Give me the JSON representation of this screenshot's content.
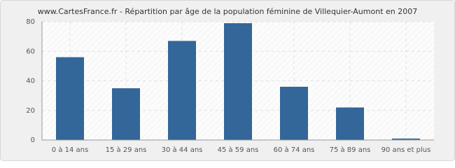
{
  "chart_data": {
    "type": "bar",
    "title": "www.CartesFrance.fr - Répartition par âge de la population féminine de Villequier-Aumont en 2007",
    "categories": [
      "0 à 14 ans",
      "15 à 29 ans",
      "30 à 44 ans",
      "45 à 59 ans",
      "60 à 74 ans",
      "75 à 89 ans",
      "90 ans et plus"
    ],
    "values": [
      56,
      35,
      67,
      79,
      36,
      22,
      1
    ],
    "color": "#336699",
    "ylim": [
      0,
      80
    ],
    "yticks": [
      0,
      20,
      40,
      60,
      80
    ],
    "grid": true
  }
}
